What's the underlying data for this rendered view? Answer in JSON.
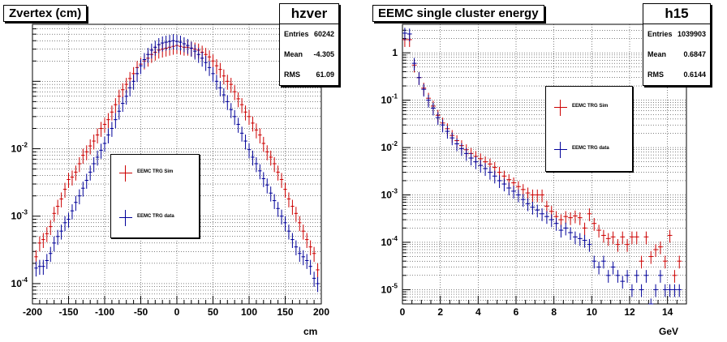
{
  "chart_data": [
    {
      "type": "scatter",
      "title": "Zvertex (cm)",
      "xlabel": "cm",
      "ylabel": "",
      "xlim": [
        -200,
        200
      ],
      "ylim": [
        5e-05,
        0.7
      ],
      "yscale": "log",
      "grid": true,
      "xticks": [
        "-200",
        "-150",
        "-100",
        "-50",
        "0",
        "50",
        "100",
        "150",
        "200"
      ],
      "yticks": [
        "10-4",
        "10-3",
        "10-2"
      ],
      "legend_position": "lower-center",
      "stats": {
        "name": "hzver",
        "Entries": "60242",
        "Mean": "-4.305",
        "RMS": "61.09"
      },
      "series": [
        {
          "name": "EEMC TRG Sim",
          "color": "#cc0000",
          "x": [
            -195,
            -190,
            -185,
            -180,
            -175,
            -170,
            -165,
            -160,
            -155,
            -150,
            -145,
            -140,
            -135,
            -130,
            -125,
            -120,
            -115,
            -110,
            -105,
            -100,
            -95,
            -90,
            -85,
            -80,
            -75,
            -70,
            -65,
            -60,
            -55,
            -50,
            -45,
            -40,
            -35,
            -30,
            -25,
            -20,
            -15,
            -10,
            -5,
            0,
            5,
            10,
            15,
            20,
            25,
            30,
            35,
            40,
            45,
            50,
            55,
            60,
            65,
            70,
            75,
            80,
            85,
            90,
            95,
            100,
            105,
            110,
            115,
            120,
            125,
            130,
            135,
            140,
            145,
            150,
            155,
            160,
            165,
            170,
            175,
            180,
            185,
            190,
            195
          ],
          "y": [
            0.00025,
            0.0004,
            0.00045,
            0.00055,
            0.0007,
            0.0011,
            0.0014,
            0.0018,
            0.0025,
            0.0035,
            0.0038,
            0.0045,
            0.006,
            0.008,
            0.009,
            0.011,
            0.013,
            0.016,
            0.02,
            0.023,
            0.027,
            0.035,
            0.045,
            0.06,
            0.075,
            0.09,
            0.11,
            0.13,
            0.16,
            0.18,
            0.2,
            0.22,
            0.25,
            0.27,
            0.29,
            0.3,
            0.31,
            0.32,
            0.33,
            0.34,
            0.33,
            0.32,
            0.32,
            0.31,
            0.3,
            0.29,
            0.27,
            0.25,
            0.23,
            0.2,
            0.17,
            0.15,
            0.12,
            0.1,
            0.09,
            0.07,
            0.055,
            0.045,
            0.035,
            0.03,
            0.024,
            0.019,
            0.016,
            0.012,
            0.009,
            0.0075,
            0.006,
            0.0045,
            0.0035,
            0.0025,
            0.0018,
            0.0014,
            0.0011,
            0.0008,
            0.0006,
            0.00045,
            0.00035,
            0.00028,
            0.00016
          ]
        },
        {
          "name": "EEMC TRG data",
          "color": "#000099",
          "x": [
            -195,
            -190,
            -185,
            -180,
            -175,
            -170,
            -165,
            -160,
            -155,
            -150,
            -145,
            -140,
            -135,
            -130,
            -125,
            -120,
            -115,
            -110,
            -105,
            -100,
            -95,
            -90,
            -85,
            -80,
            -75,
            -70,
            -65,
            -60,
            -55,
            -50,
            -45,
            -40,
            -35,
            -30,
            -25,
            -20,
            -15,
            -10,
            -5,
            0,
            5,
            10,
            15,
            20,
            25,
            30,
            35,
            40,
            45,
            50,
            55,
            60,
            65,
            70,
            75,
            80,
            85,
            90,
            95,
            100,
            105,
            110,
            115,
            120,
            125,
            130,
            135,
            140,
            145,
            150,
            155,
            160,
            165,
            170,
            175,
            180,
            185,
            190,
            195
          ],
          "y": [
            0.00017,
            0.00018,
            0.00018,
            0.00022,
            0.00028,
            0.0004,
            0.0005,
            0.0006,
            0.0008,
            0.0009,
            0.0012,
            0.0016,
            0.002,
            0.0026,
            0.0034,
            0.0045,
            0.006,
            0.0075,
            0.0095,
            0.012,
            0.016,
            0.02,
            0.027,
            0.036,
            0.047,
            0.06,
            0.08,
            0.1,
            0.13,
            0.17,
            0.21,
            0.25,
            0.29,
            0.32,
            0.35,
            0.37,
            0.38,
            0.39,
            0.4,
            0.39,
            0.38,
            0.36,
            0.34,
            0.31,
            0.28,
            0.25,
            0.22,
            0.19,
            0.16,
            0.13,
            0.1,
            0.08,
            0.063,
            0.05,
            0.038,
            0.03,
            0.023,
            0.017,
            0.013,
            0.0097,
            0.0075,
            0.006,
            0.0047,
            0.0036,
            0.0029,
            0.0022,
            0.0017,
            0.0013,
            0.001,
            0.0008,
            0.0006,
            0.00045,
            0.00035,
            0.00028,
            0.00025,
            0.00022,
            0.00018,
            0.00012,
            0.0001
          ]
        }
      ]
    },
    {
      "type": "scatter",
      "title": "EEMC single cluster energy",
      "xlabel": "GeV",
      "ylabel": "",
      "xlim": [
        0,
        15
      ],
      "ylim": [
        5e-06,
        4
      ],
      "yscale": "log",
      "grid": true,
      "xticks": [
        "0",
        "2",
        "4",
        "6",
        "8",
        "10",
        "12",
        "14"
      ],
      "yticks": [
        "10-5",
        "10-4",
        "10-3",
        "10-2",
        "10-1",
        "1"
      ],
      "legend_position": "center-right",
      "stats": {
        "name": "h15",
        "Entries": "1039903",
        "Mean": "0.6847",
        "RMS": "0.6144"
      },
      "series": [
        {
          "name": "EEMC TRG Sim",
          "color": "#cc0000",
          "x": [
            0.125,
            0.375,
            0.625,
            0.875,
            1.125,
            1.375,
            1.625,
            1.875,
            2.125,
            2.375,
            2.625,
            2.875,
            3.125,
            3.375,
            3.625,
            3.875,
            4.125,
            4.375,
            4.625,
            4.875,
            5.125,
            5.375,
            5.625,
            5.875,
            6.125,
            6.375,
            6.625,
            6.875,
            7.125,
            7.375,
            7.625,
            7.875,
            8.125,
            8.375,
            8.625,
            8.875,
            9.125,
            9.375,
            9.625,
            9.875,
            10.125,
            10.375,
            10.625,
            10.875,
            11.125,
            11.375,
            11.625,
            11.875,
            12.125,
            12.375,
            12.625,
            12.875,
            13.125,
            13.375,
            13.625,
            13.875,
            14.125,
            14.375,
            14.625
          ],
          "y": [
            1.9,
            1.9,
            0.55,
            0.3,
            0.18,
            0.11,
            0.075,
            0.048,
            0.033,
            0.025,
            0.018,
            0.014,
            0.011,
            0.009,
            0.0075,
            0.0065,
            0.0058,
            0.005,
            0.0045,
            0.0038,
            0.003,
            0.0025,
            0.0021,
            0.0018,
            0.0015,
            0.0013,
            0.0011,
            0.001,
            0.001,
            0.001,
            0.00058,
            0.00045,
            0.00035,
            0.0003,
            0.00035,
            0.00033,
            0.00036,
            0.00033,
            0.0002,
            0.0004,
            0.00025,
            0.00018,
            0.00014,
            0.00012,
            0.00013,
            9e-05,
            0.00013,
            9e-05,
            0.00013,
            0.00013,
            4e-05,
            0.00013,
            5e-05,
            7e-05,
            8e-05,
            4e-05,
            0.00014,
            2e-05,
            4e-05
          ]
        },
        {
          "name": "EEMC TRG data",
          "color": "#000099",
          "x": [
            0.125,
            0.375,
            0.625,
            0.875,
            1.125,
            1.375,
            1.625,
            1.875,
            2.125,
            2.375,
            2.625,
            2.875,
            3.125,
            3.375,
            3.625,
            3.875,
            4.125,
            4.375,
            4.625,
            4.875,
            5.125,
            5.375,
            5.625,
            5.875,
            6.125,
            6.375,
            6.625,
            6.875,
            7.125,
            7.375,
            7.625,
            7.875,
            8.125,
            8.375,
            8.625,
            8.875,
            9.125,
            9.375,
            9.625,
            9.875,
            10.125,
            10.375,
            10.625,
            10.875,
            11.125,
            11.375,
            11.625,
            11.875,
            12.125,
            12.375,
            12.625,
            12.875,
            13.125,
            13.375,
            13.625,
            13.875,
            14.125,
            14.375,
            14.625
          ],
          "y": [
            2.6,
            2.5,
            0.6,
            0.3,
            0.17,
            0.1,
            0.068,
            0.043,
            0.03,
            0.022,
            0.016,
            0.012,
            0.0095,
            0.0075,
            0.006,
            0.005,
            0.0042,
            0.0036,
            0.003,
            0.0025,
            0.002,
            0.0017,
            0.0014,
            0.0012,
            0.001,
            0.0008,
            0.00065,
            0.00055,
            0.00048,
            0.0004,
            0.00035,
            0.0003,
            0.00025,
            0.00018,
            0.0002,
            0.00016,
            0.00013,
            0.00012,
            0.00011,
            9e-05,
            4e-05,
            3e-05,
            4e-05,
            2e-05,
            3e-05,
            2e-05,
            1.5e-05,
            2e-05,
            1e-05,
            2e-05,
            1e-05,
            2e-05,
            5e-06,
            1e-05,
            2e-05,
            1e-05,
            1e-05,
            1e-05,
            1e-05
          ]
        }
      ]
    }
  ]
}
